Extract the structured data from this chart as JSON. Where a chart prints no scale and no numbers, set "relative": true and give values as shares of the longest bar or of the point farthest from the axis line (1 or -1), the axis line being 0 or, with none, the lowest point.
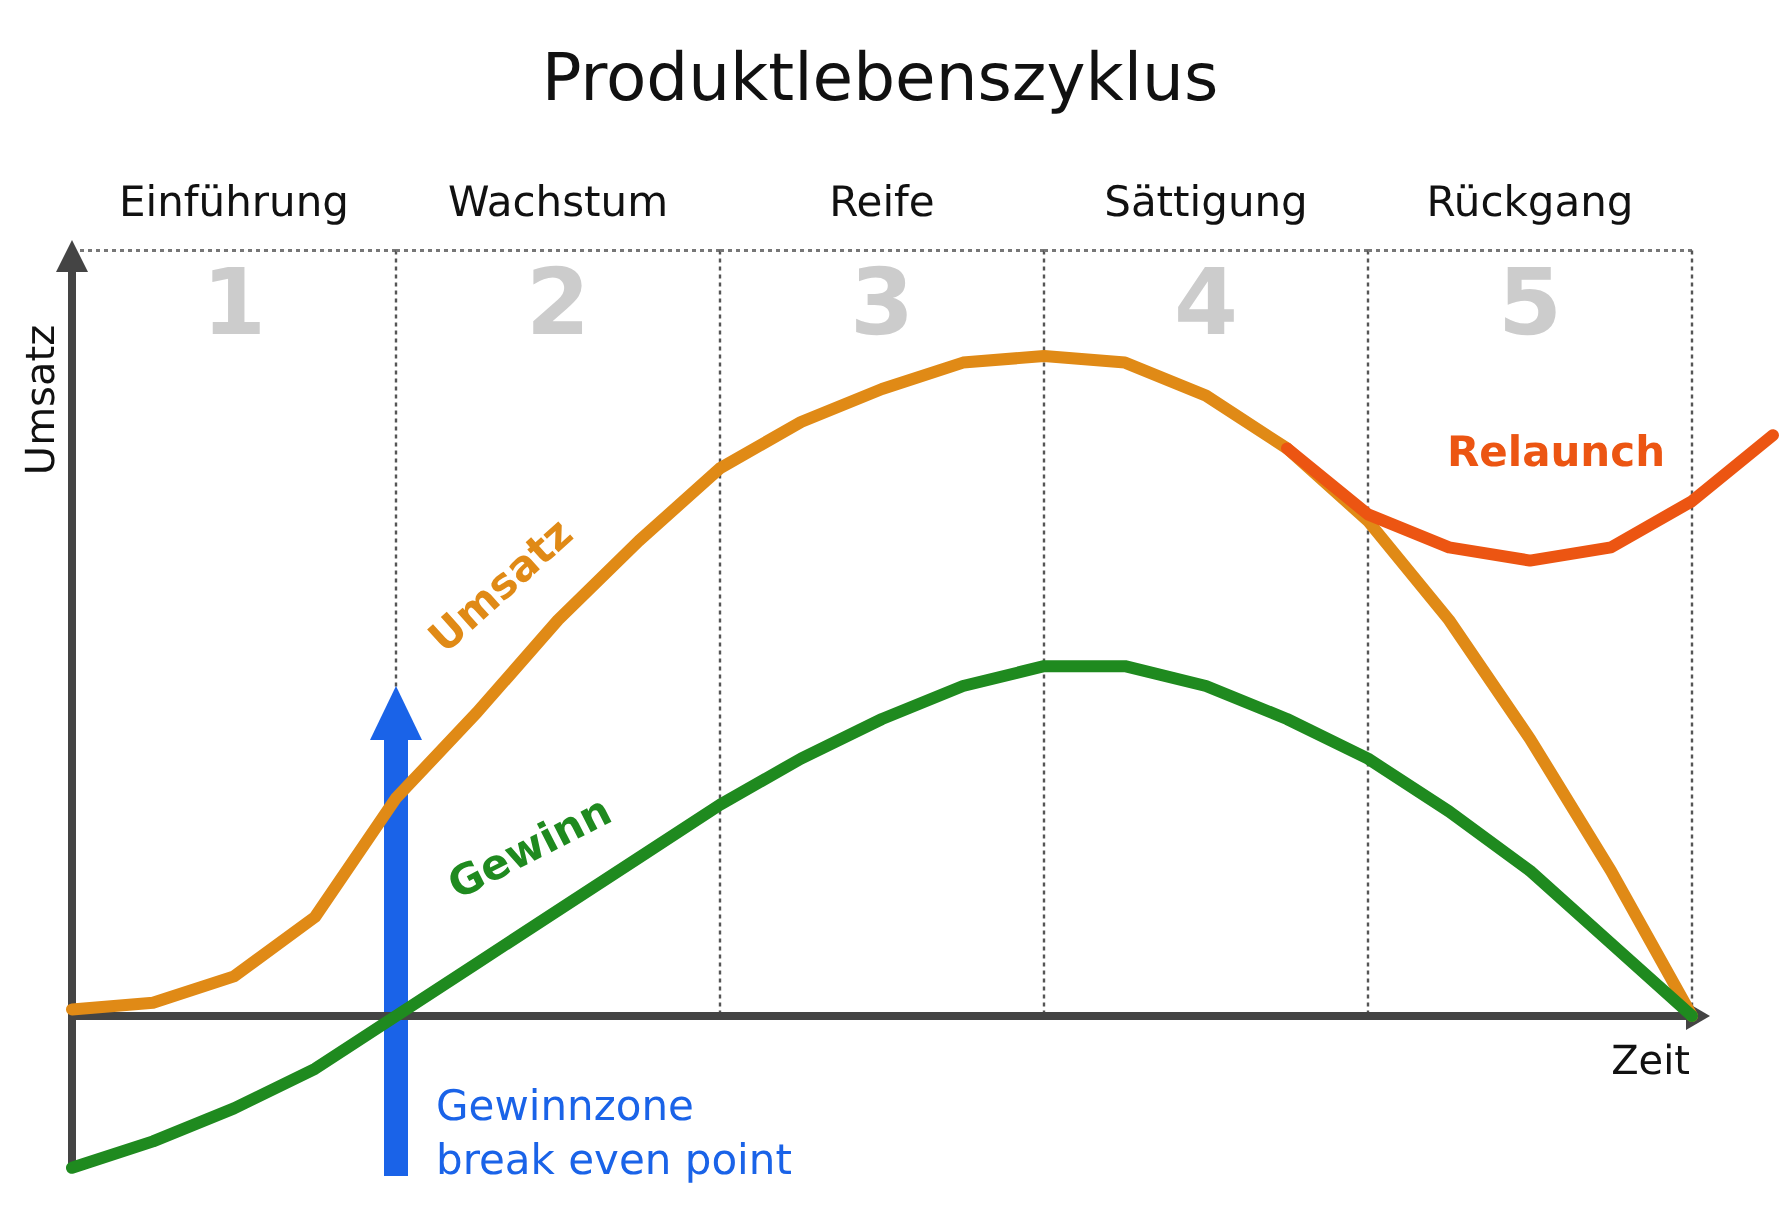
{
  "chart_data": {
    "type": "line",
    "title": "Produktlebenszyklus",
    "xlabel": "Zeit",
    "ylabel": "Umsatz",
    "relative": true,
    "grid": "x",
    "categories": [
      null,
      null,
      null,
      null,
      null,
      null,
      null,
      null,
      null,
      null,
      null,
      null,
      null,
      null,
      null,
      null,
      null,
      null,
      null,
      null,
      null,
      null
    ],
    "series": [
      {
        "name": "Umsatz",
        "color": "#e08a16",
        "values": [
          0.01,
          0.02,
          0.06,
          0.15,
          0.33,
          0.46,
          0.6,
          0.72,
          0.83,
          0.9,
          0.95,
          0.99,
          1,
          0.99,
          0.94,
          0.86,
          0.75,
          0.6,
          0.42,
          0.22,
          0,
          null
        ]
      },
      {
        "name": "Gewinn",
        "color": "#1f8a1f",
        "values": [
          -0.23,
          -0.19,
          -0.14,
          -0.08,
          0,
          0.08,
          0.16,
          0.24,
          0.32,
          0.39,
          0.45,
          0.5,
          0.53,
          0.53,
          0.5,
          0.45,
          0.39,
          0.31,
          0.22,
          0.11,
          0,
          null
        ]
      },
      {
        "name": "Relaunch",
        "color": "#ec5512",
        "values": [
          null,
          null,
          null,
          null,
          null,
          null,
          null,
          null,
          null,
          null,
          null,
          null,
          null,
          null,
          null,
          0.86,
          0.76,
          0.71,
          0.69,
          0.71,
          0.78,
          0.88
        ]
      }
    ],
    "annotations": [
      "Einführung",
      "Wachstum",
      "Reife",
      "Sättigung",
      "Rückgang",
      "1",
      "2",
      "3",
      "4",
      "5",
      "Gewinnzone\nbreak even point"
    ]
  }
}
